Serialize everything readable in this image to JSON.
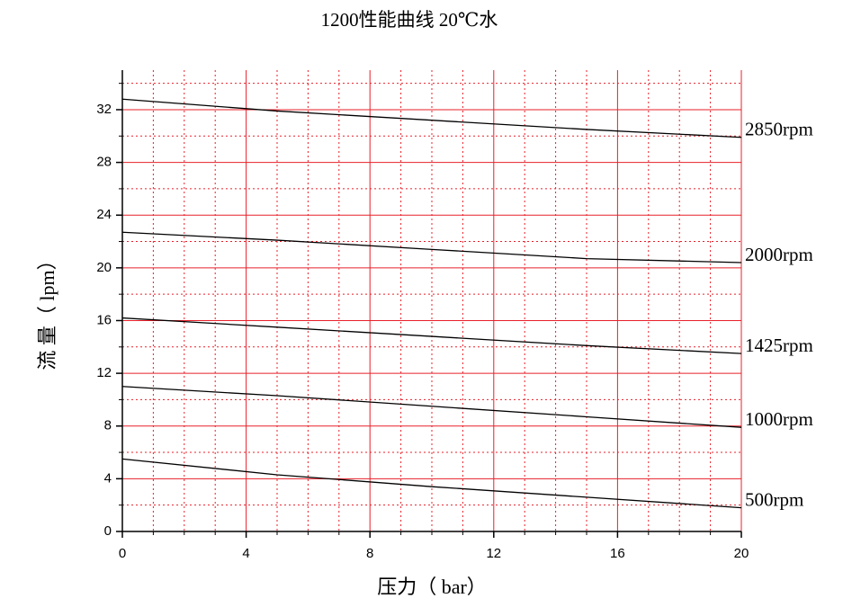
{
  "chart_data": {
    "type": "line",
    "title": "1200性能曲线  20℃水",
    "x_label": "压力（ bar）",
    "y_label": "流 量（ lpm）",
    "x": [
      0,
      5,
      10,
      15,
      20
    ],
    "series": [
      {
        "name": "2850rpm",
        "color": "#000000",
        "values": [
          32.8,
          31.9,
          31.2,
          30.5,
          29.9
        ]
      },
      {
        "name": "2000rpm",
        "color": "#000000",
        "values": [
          22.7,
          22.1,
          21.4,
          20.7,
          20.4
        ]
      },
      {
        "name": "1425rpm",
        "color": "#000000",
        "values": [
          16.2,
          15.5,
          14.8,
          14.1,
          13.5
        ]
      },
      {
        "name": "1000rpm",
        "color": "#000000",
        "values": [
          11.0,
          10.3,
          9.5,
          8.7,
          7.9
        ]
      },
      {
        "name": "500rpm",
        "color": "#000000",
        "values": [
          5.5,
          4.3,
          3.4,
          2.6,
          1.8
        ]
      }
    ],
    "xlim": [
      0,
      20
    ],
    "ylim": [
      0,
      35
    ],
    "xticks": [
      0,
      4,
      8,
      12,
      16,
      20
    ],
    "yticks": [
      0,
      4,
      8,
      12,
      16,
      20,
      24,
      28,
      32
    ],
    "xminorticks": [
      1,
      2,
      3,
      5,
      6,
      7,
      9,
      10,
      11,
      13,
      14,
      15,
      17,
      18,
      19
    ],
    "yminorticks": [
      2,
      6,
      10,
      14,
      18,
      22,
      26,
      30,
      34
    ],
    "grid": true,
    "grid_color": "#e8202a"
  }
}
